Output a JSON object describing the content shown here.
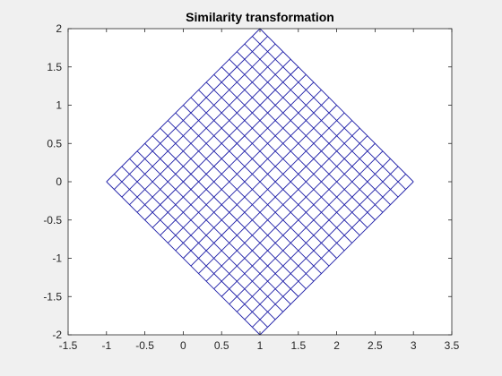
{
  "chart_data": {
    "type": "line",
    "title": "Similarity transformation",
    "xlabel": "",
    "ylabel": "",
    "xlim": [
      -1.5,
      3.5
    ],
    "ylim": [
      -2,
      2
    ],
    "x_ticks": [
      -1.5,
      -1,
      -0.5,
      0,
      0.5,
      1,
      1.5,
      2,
      2.5,
      3,
      3.5
    ],
    "x_tick_labels": [
      "-1.5",
      "-1",
      "-0.5",
      "0",
      "0.5",
      "1",
      "1.5",
      "2",
      "2.5",
      "3",
      "3.5"
    ],
    "y_ticks": [
      -2,
      -1.5,
      -1,
      -0.5,
      0,
      0.5,
      1,
      1.5,
      2
    ],
    "y_tick_labels": [
      "-2",
      "-1.5",
      "-1",
      "-0.5",
      "0",
      "0.5",
      "1",
      "1.5",
      "2"
    ],
    "grid": false,
    "series": [
      {
        "color": "#1f1fa8",
        "grid_lines_per_direction": 21,
        "corners": [
          {
            "x": -1,
            "y": 0
          },
          {
            "x": 1,
            "y": 2
          },
          {
            "x": 3,
            "y": 0
          },
          {
            "x": 1,
            "y": -2
          }
        ]
      }
    ]
  },
  "colors": {
    "axes_background": "#ffffff",
    "figure_background": "#f0f0f0",
    "axis_color": "#262626"
  }
}
